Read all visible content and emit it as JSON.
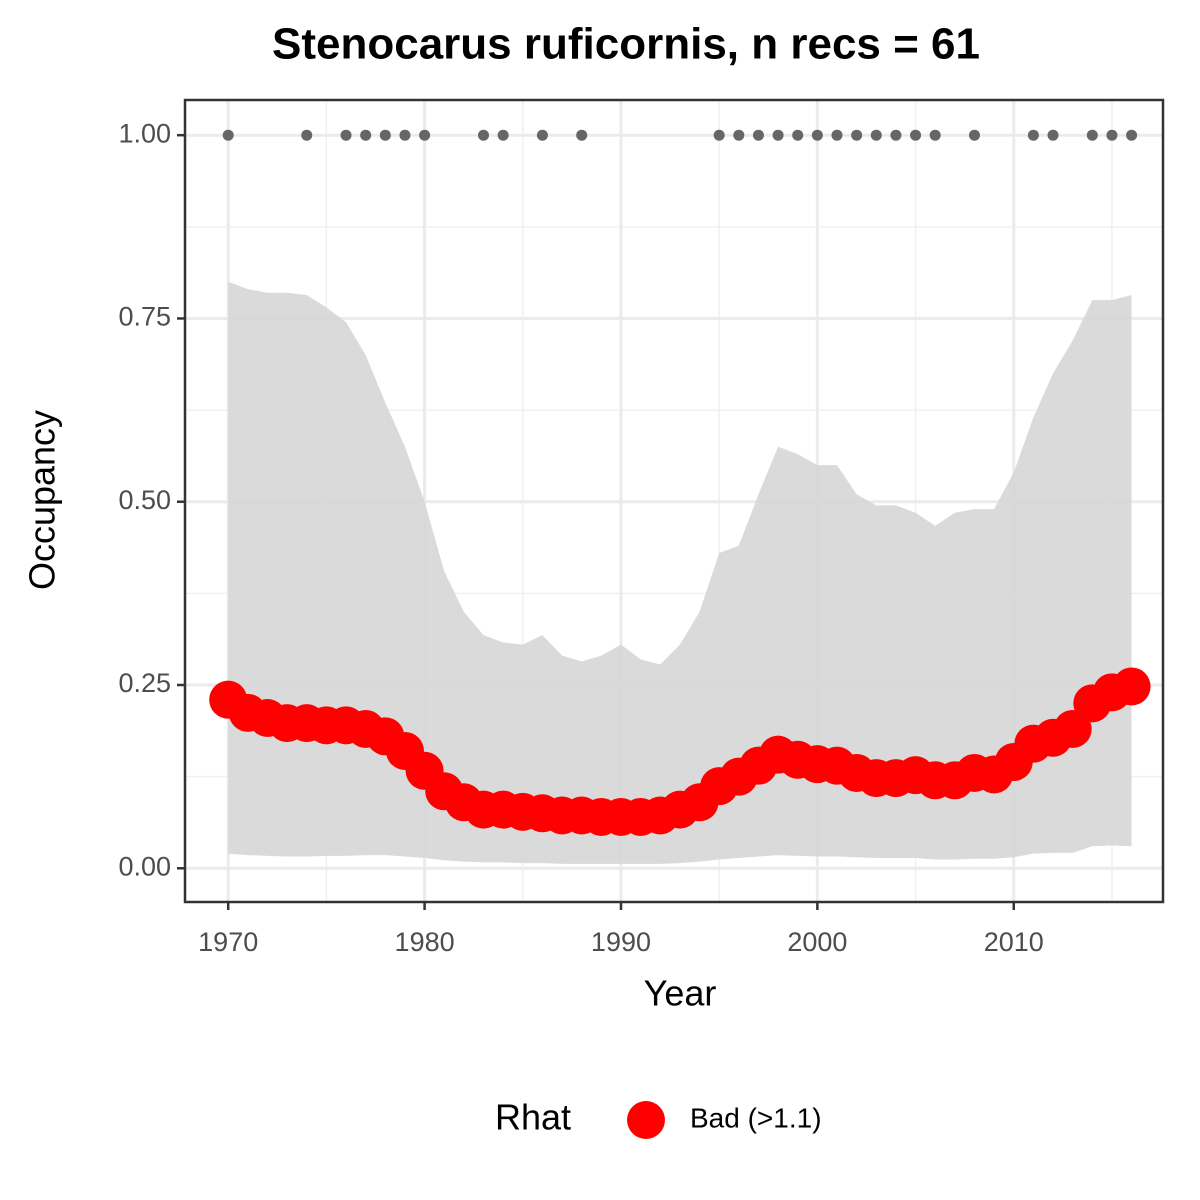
{
  "chart_data": {
    "type": "line",
    "title": "Stenocarus ruficornis, n recs = 61",
    "xlabel": "Year",
    "ylabel": "Occupancy",
    "legend_title": "Rhat",
    "x": [
      1970,
      1971,
      1972,
      1973,
      1974,
      1975,
      1976,
      1977,
      1978,
      1979,
      1980,
      1981,
      1982,
      1983,
      1984,
      1985,
      1986,
      1987,
      1988,
      1989,
      1990,
      1991,
      1992,
      1993,
      1994,
      1995,
      1996,
      1997,
      1998,
      1999,
      2000,
      2001,
      2002,
      2003,
      2004,
      2005,
      2006,
      2007,
      2008,
      2009,
      2010,
      2011,
      2012,
      2013,
      2014,
      2015,
      2016
    ],
    "series": [
      {
        "name": "Bad (>1.1)",
        "color": "#ff0000",
        "values": [
          0.23,
          0.212,
          0.205,
          0.198,
          0.198,
          0.195,
          0.195,
          0.19,
          0.18,
          0.16,
          0.133,
          0.105,
          0.09,
          0.08,
          0.08,
          0.077,
          0.075,
          0.072,
          0.072,
          0.07,
          0.07,
          0.07,
          0.072,
          0.08,
          0.09,
          0.112,
          0.125,
          0.14,
          0.155,
          0.148,
          0.142,
          0.14,
          0.13,
          0.123,
          0.123,
          0.127,
          0.12,
          0.12,
          0.13,
          0.128,
          0.145,
          0.17,
          0.178,
          0.19,
          0.225,
          0.24,
          0.248
        ]
      }
    ],
    "band": {
      "color": "#d6d6d6",
      "upper": [
        0.8,
        0.79,
        0.785,
        0.785,
        0.782,
        0.765,
        0.745,
        0.7,
        0.635,
        0.575,
        0.5,
        0.405,
        0.35,
        0.318,
        0.308,
        0.305,
        0.318,
        0.29,
        0.282,
        0.29,
        0.305,
        0.285,
        0.278,
        0.305,
        0.35,
        0.43,
        0.44,
        0.51,
        0.575,
        0.565,
        0.55,
        0.55,
        0.51,
        0.495,
        0.495,
        0.485,
        0.467,
        0.485,
        0.49,
        0.49,
        0.54,
        0.615,
        0.675,
        0.72,
        0.775,
        0.775,
        0.782
      ],
      "lower": [
        0.02,
        0.018,
        0.017,
        0.016,
        0.016,
        0.017,
        0.017,
        0.018,
        0.018,
        0.016,
        0.014,
        0.011,
        0.009,
        0.008,
        0.008,
        0.007,
        0.007,
        0.006,
        0.006,
        0.006,
        0.006,
        0.006,
        0.006,
        0.007,
        0.009,
        0.012,
        0.014,
        0.016,
        0.018,
        0.017,
        0.016,
        0.016,
        0.015,
        0.014,
        0.014,
        0.014,
        0.012,
        0.012,
        0.013,
        0.013,
        0.015,
        0.02,
        0.021,
        0.021,
        0.03,
        0.031,
        0.03
      ]
    },
    "records": {
      "color": "#666666",
      "x": [
        1970,
        1974,
        1976,
        1977,
        1978,
        1979,
        1980,
        1983,
        1984,
        1986,
        1988,
        1995,
        1996,
        1997,
        1998,
        1999,
        2000,
        2001,
        2002,
        2003,
        2004,
        2005,
        2006,
        2008,
        2011,
        2012,
        2014,
        2015,
        2016
      ],
      "values": [
        1,
        1,
        1,
        1,
        1,
        1,
        1,
        1,
        1,
        1,
        1,
        1,
        1,
        1,
        1,
        1,
        1,
        1,
        1,
        1,
        1,
        1,
        1,
        1,
        1,
        1,
        1,
        1,
        1
      ]
    },
    "xlim": [
      1967.8,
      2017.6
    ],
    "ylim": [
      -0.046,
      1.048
    ],
    "xticks": [
      1970,
      1980,
      1990,
      2000,
      2010
    ],
    "yticks": [
      {
        "value": 0,
        "label": "0.00"
      },
      {
        "value": 0.25,
        "label": "0.25"
      },
      {
        "value": 0.5,
        "label": "0.50"
      },
      {
        "value": 0.75,
        "label": "0.75"
      },
      {
        "value": 1,
        "label": "1.00"
      }
    ],
    "xminorticks": [
      1975,
      1985,
      1995,
      2005,
      2015
    ],
    "yminorticks": [
      0.125,
      0.375,
      0.625,
      0.875
    ],
    "grid": true
  }
}
